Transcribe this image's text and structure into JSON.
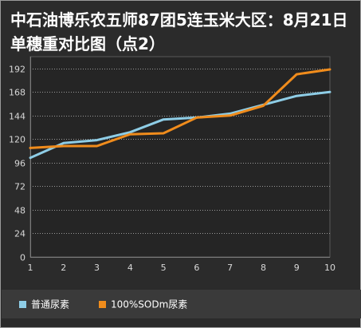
{
  "chart_data": {
    "type": "line",
    "title": "中石油博乐农五师87团5连玉米大区：8月21日单穗重对比图（点2）",
    "x": [
      1,
      2,
      3,
      4,
      5,
      6,
      7,
      8,
      9,
      10
    ],
    "ylim": [
      0,
      204
    ],
    "yticks": [
      0,
      24,
      48,
      72,
      96,
      120,
      144,
      168,
      192
    ],
    "grid": true,
    "legend_position": "bottom",
    "series": [
      {
        "name": "普通尿素",
        "color": "#8ecde6",
        "values": [
          101,
          116,
          119,
          127,
          140,
          142,
          146,
          155,
          164,
          168
        ]
      },
      {
        "name": "100%SODm尿素",
        "color": "#f08c1c",
        "values": [
          111,
          113,
          113,
          125,
          126,
          142,
          144,
          154,
          186,
          191
        ]
      }
    ]
  }
}
